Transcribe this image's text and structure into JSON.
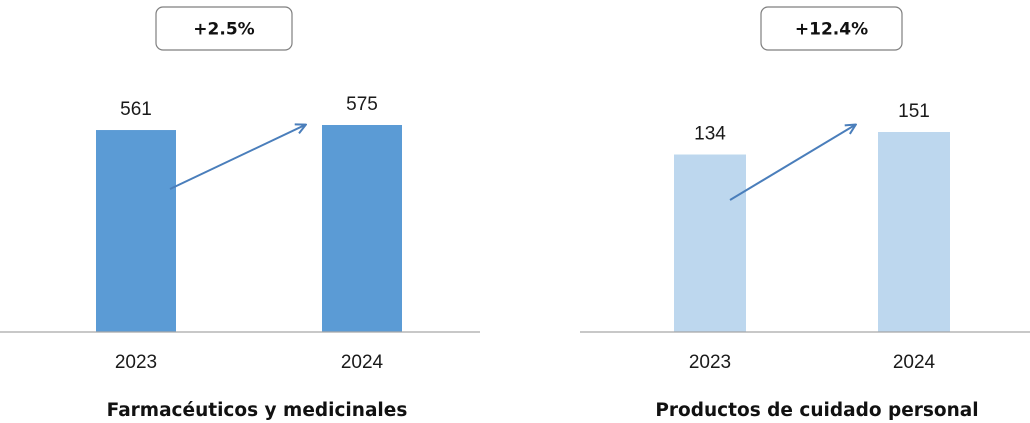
{
  "chart_data": [
    {
      "type": "bar",
      "title": "Farmacéuticos y medicinales",
      "categories": [
        "2023",
        "2024"
      ],
      "values": [
        561,
        575
      ],
      "change_label": "+2.5%",
      "bar_color": "#5B9BD5",
      "xlabel": "",
      "ylabel": "",
      "grid": false
    },
    {
      "type": "bar",
      "title": "Productos de cuidado personal",
      "categories": [
        "2023",
        "2024"
      ],
      "values": [
        134,
        151
      ],
      "change_label": "+12.4%",
      "bar_color": "#BDD7EE",
      "xlabel": "",
      "ylabel": "",
      "grid": false
    }
  ],
  "colors": {
    "arrow": "#4A7EBB",
    "axis": "#a6a6a6",
    "badge_border": "#7f7f7f"
  }
}
